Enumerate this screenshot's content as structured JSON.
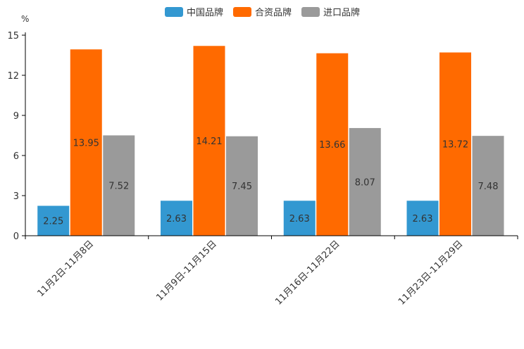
{
  "chart_data": {
    "type": "bar",
    "unit": "%",
    "categories": [
      "11月2日-11月8日",
      "11月9日-11月15日",
      "11月16日-11月22日",
      "11月23日-11月29日"
    ],
    "series": [
      {
        "name": "中国品牌",
        "color": "#3398d1",
        "values": [
          2.25,
          2.63,
          2.63,
          2.63
        ]
      },
      {
        "name": "合资品牌",
        "color": "#ff6a00",
        "values": [
          13.95,
          14.21,
          13.66,
          13.72
        ]
      },
      {
        "name": "进口品牌",
        "color": "#9a9a9a",
        "values": [
          7.52,
          7.45,
          8.07,
          7.48
        ]
      }
    ],
    "ylim": [
      0,
      15
    ],
    "yticks": [
      0,
      3,
      6,
      9,
      12,
      15
    ],
    "legend_position": "top-center"
  }
}
